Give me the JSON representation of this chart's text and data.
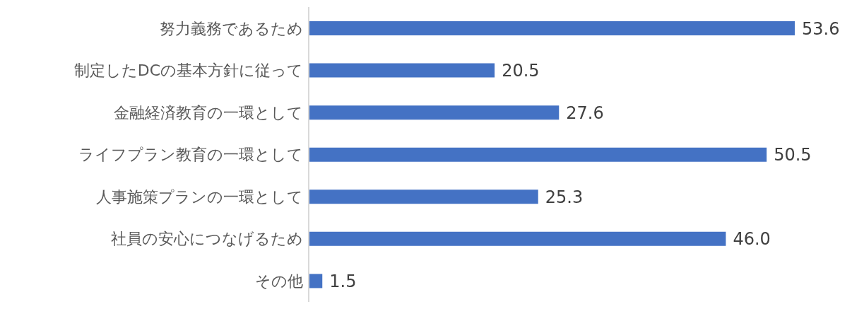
{
  "chart_data": {
    "type": "bar",
    "orientation": "horizontal",
    "categories": [
      "努力義務であるため",
      "制定したDCの基本方針に従って",
      "金融経済教育の一環として",
      "ライフプラン教育の一環として",
      "人事施策プランの一環として",
      "社員の安心につなげるため",
      "その他"
    ],
    "values": [
      53.6,
      20.5,
      27.6,
      50.5,
      25.3,
      46.0,
      1.5
    ],
    "value_labels": [
      "53.6",
      "20.5",
      "27.6",
      "50.5",
      "25.3",
      "46.0",
      "1.5"
    ],
    "color": "#4472c4",
    "grid": false,
    "legend": false
  }
}
